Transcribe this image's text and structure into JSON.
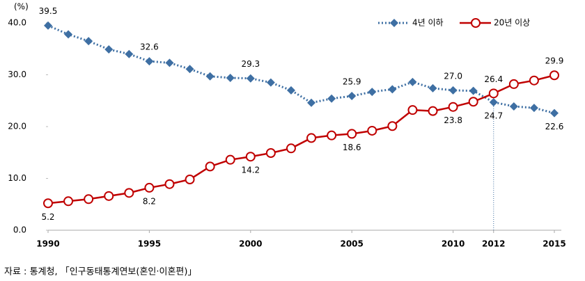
{
  "chart_data": {
    "type": "line",
    "unit": "(%)",
    "x": [
      1990,
      1991,
      1992,
      1993,
      1994,
      1995,
      1996,
      1997,
      1998,
      1999,
      2000,
      2001,
      2002,
      2003,
      2004,
      2005,
      2006,
      2007,
      2008,
      2009,
      2010,
      2011,
      2012,
      2013,
      2014,
      2015
    ],
    "xlim": [
      1990,
      2015
    ],
    "xticks": [
      1990,
      1995,
      2000,
      2005,
      2010,
      2012,
      2015
    ],
    "ylim": [
      0,
      40
    ],
    "yticks": [
      {
        "value": 0,
        "label": "0.0"
      },
      {
        "value": 10,
        "label": "10.0"
      },
      {
        "value": 20,
        "label": "20.0"
      },
      {
        "value": 30,
        "label": "30.0"
      },
      {
        "value": 40,
        "label": "40.0"
      }
    ],
    "grid": false,
    "legend": "top-right",
    "highlight_x": 2012,
    "series": [
      {
        "name": "4년 이하",
        "color": "#3e6fa3",
        "marker": "diamond",
        "line": "dotted",
        "values": [
          39.5,
          37.8,
          36.5,
          34.9,
          34.0,
          32.6,
          32.3,
          31.1,
          29.7,
          29.4,
          29.3,
          28.5,
          27.0,
          24.6,
          25.4,
          25.9,
          26.7,
          27.2,
          28.6,
          27.4,
          27.0,
          26.9,
          24.7,
          23.9,
          23.6,
          22.6
        ],
        "value_labels": [
          "39.5",
          null,
          null,
          null,
          null,
          "32.6",
          null,
          null,
          null,
          null,
          "29.3",
          null,
          null,
          null,
          null,
          "25.9",
          null,
          null,
          null,
          null,
          "27.0",
          null,
          "24.7",
          null,
          null,
          "22.6"
        ]
      },
      {
        "name": "20년 이상",
        "color": "#c00000",
        "marker": "circle",
        "line": "solid",
        "values": [
          5.2,
          5.6,
          6.0,
          6.6,
          7.2,
          8.2,
          8.9,
          9.8,
          12.3,
          13.6,
          14.2,
          14.9,
          15.8,
          17.8,
          18.3,
          18.6,
          19.2,
          20.1,
          23.2,
          23.0,
          23.8,
          24.8,
          26.4,
          28.2,
          28.9,
          29.9
        ],
        "value_labels": [
          "5.2",
          null,
          null,
          null,
          null,
          "8.2",
          null,
          null,
          null,
          null,
          "14.2",
          null,
          null,
          null,
          null,
          "18.6",
          null,
          null,
          null,
          null,
          "23.8",
          null,
          "26.4",
          null,
          null,
          "29.9"
        ]
      }
    ]
  },
  "source": "자료 : 통계청, 「인구동태통계연보(혼인·이혼편)」"
}
